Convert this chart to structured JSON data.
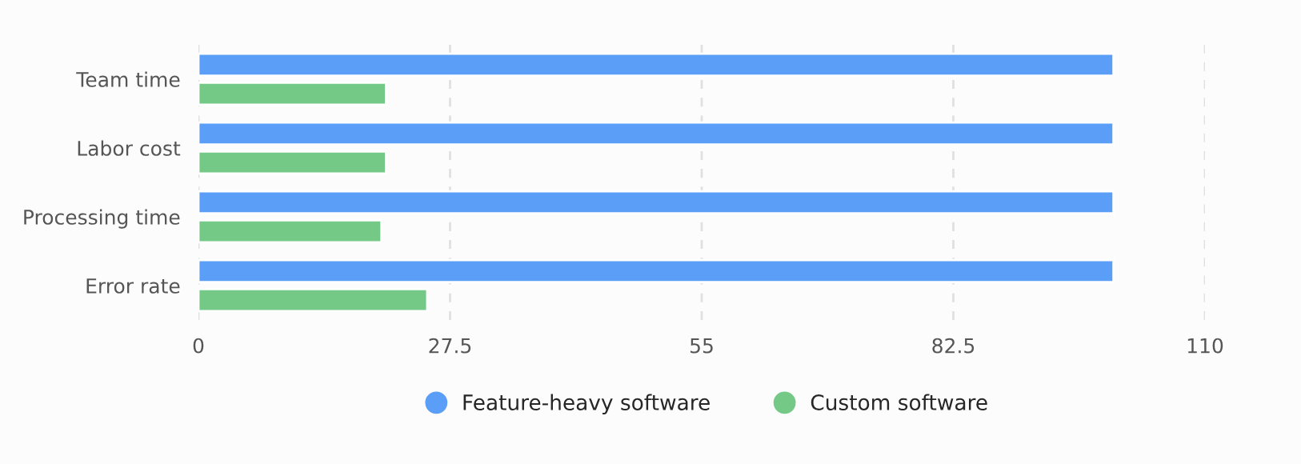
{
  "chart_data": {
    "type": "bar",
    "orientation": "horizontal",
    "categories": [
      "Team time",
      "Labor cost",
      "Processing time",
      "Error rate"
    ],
    "series": [
      {
        "name": "Feature-heavy software",
        "color": "#5b9ef7",
        "values": [
          100,
          100,
          100,
          100
        ]
      },
      {
        "name": "Custom software",
        "color": "#74c987",
        "values": [
          20.5,
          20.5,
          20,
          25
        ]
      }
    ],
    "xlim": [
      0,
      110
    ],
    "xticks": [
      0,
      27.5,
      55,
      82.5,
      110
    ],
    "grid": "x",
    "legend": "bottom"
  }
}
